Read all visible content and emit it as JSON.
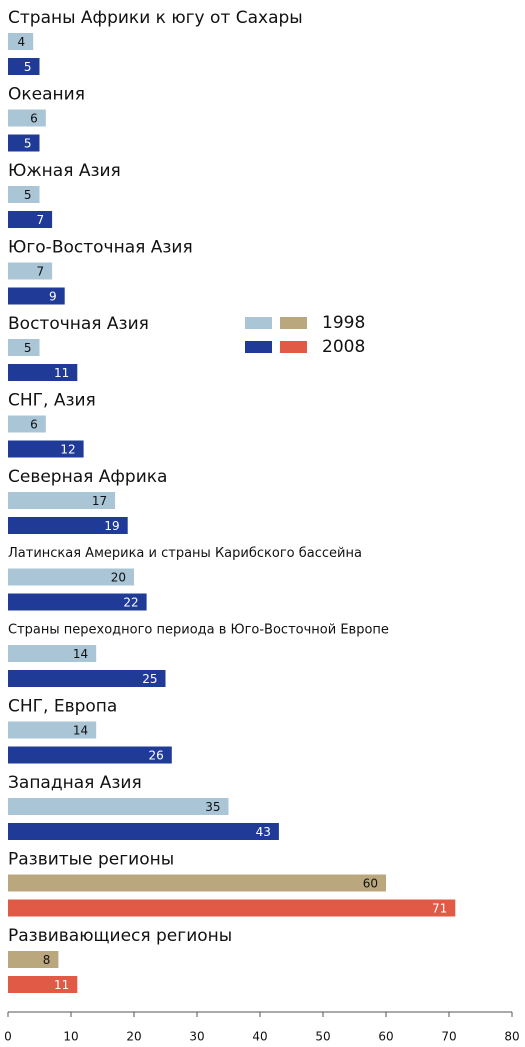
{
  "chart_data": {
    "type": "bar",
    "orientation": "horizontal",
    "categories": [
      "Страны Африки к югу от Сахары",
      "Океания",
      "Южная Азия",
      "Юго-Восточная Азия",
      "Восточная Азия",
      "СНГ, Азия",
      "Северная Африка",
      "Латинская Америка и страны Карибского бассейна",
      "Страны переходного периода в Юго-Восточной Европе",
      "СНГ, Европа",
      "Западная Азия",
      "Развитые регионы",
      "Развивающиеся регионы"
    ],
    "series": [
      {
        "name": "1998",
        "color": "#a9c5d6",
        "colors": [
          "#a9c5d6",
          "#a9c5d6",
          "#a9c5d6",
          "#a9c5d6",
          "#a9c5d6",
          "#a9c5d6",
          "#a9c5d6",
          "#a9c5d6",
          "#a9c5d6",
          "#a9c5d6",
          "#a9c5d6",
          "#bba77d",
          "#bba77d"
        ],
        "values": [
          4,
          6,
          5,
          7,
          5,
          6,
          17,
          20,
          14,
          14,
          35,
          60,
          8
        ]
      },
      {
        "name": "2008",
        "color": "#1f3b97",
        "colors": [
          "#1f3b97",
          "#1f3b97",
          "#1f3b97",
          "#1f3b97",
          "#1f3b97",
          "#1f3b97",
          "#1f3b97",
          "#1f3b97",
          "#1f3b97",
          "#1f3b97",
          "#1f3b97",
          "#e05a45",
          "#e05a45"
        ],
        "values": [
          5,
          5,
          7,
          9,
          11,
          12,
          19,
          22,
          25,
          26,
          43,
          71,
          11
        ]
      }
    ],
    "xlim": [
      0,
      80
    ],
    "xticks": [
      0,
      10,
      20,
      30,
      40,
      50,
      60,
      70,
      80
    ]
  }
}
